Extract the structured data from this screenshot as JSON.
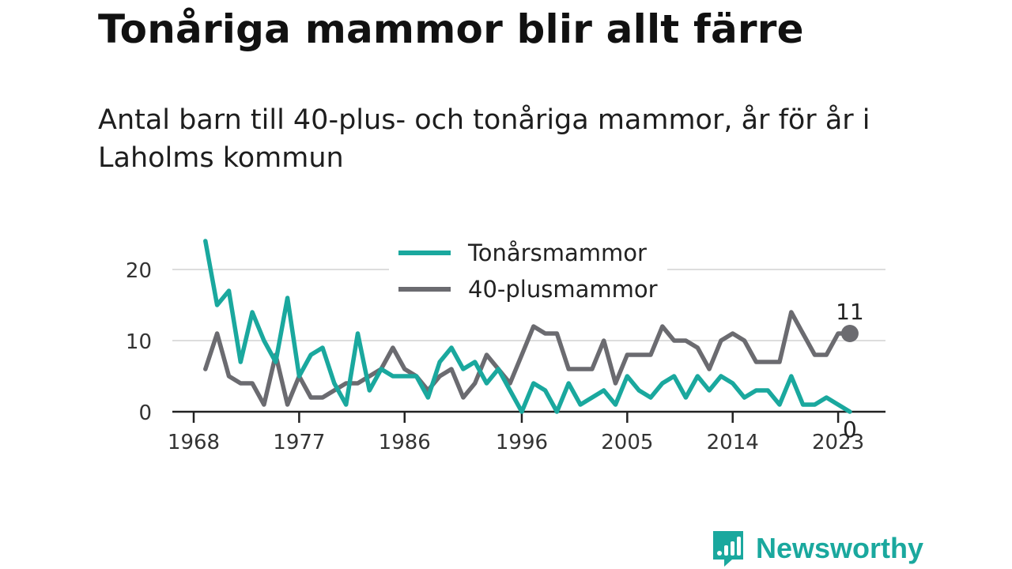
{
  "title": "Tonåriga mammor blir allt färre",
  "subtitle": "Antal barn till 40-plus- och tonåriga mammor, år för år i Laholms kommun",
  "brand": {
    "name": "Newsworthy",
    "color": "#1aa89e"
  },
  "chart_data": {
    "type": "line",
    "x": [
      1969,
      1970,
      1971,
      1972,
      1973,
      1974,
      1975,
      1976,
      1977,
      1978,
      1979,
      1980,
      1981,
      1982,
      1983,
      1984,
      1985,
      1986,
      1987,
      1988,
      1989,
      1990,
      1991,
      1992,
      1993,
      1994,
      1995,
      1996,
      1997,
      1998,
      1999,
      2000,
      2001,
      2002,
      2003,
      2004,
      2005,
      2006,
      2007,
      2008,
      2009,
      2010,
      2011,
      2012,
      2013,
      2014,
      2015,
      2016,
      2017,
      2018,
      2019,
      2020,
      2021,
      2022,
      2023,
      2024
    ],
    "series": [
      {
        "name": "Tonårsmammor",
        "color": "#1aa89e",
        "values": [
          24,
          15,
          17,
          7,
          14,
          10,
          7,
          16,
          5,
          8,
          9,
          4,
          1,
          11,
          3,
          6,
          5,
          5,
          5,
          2,
          7,
          9,
          6,
          7,
          4,
          6,
          3,
          0,
          4,
          3,
          0,
          4,
          1,
          2,
          3,
          1,
          5,
          3,
          2,
          4,
          5,
          2,
          5,
          3,
          5,
          4,
          2,
          3,
          3,
          1,
          5,
          1,
          1,
          2,
          1,
          0
        ]
      },
      {
        "name": "40-plusmammor",
        "color": "#6b6b70",
        "values": [
          6,
          11,
          5,
          4,
          4,
          1,
          8,
          1,
          5,
          2,
          2,
          3,
          4,
          4,
          5,
          6,
          9,
          6,
          5,
          3,
          5,
          6,
          2,
          4,
          8,
          6,
          4,
          8,
          12,
          11,
          11,
          6,
          6,
          6,
          10,
          4,
          8,
          8,
          8,
          12,
          10,
          10,
          9,
          6,
          10,
          11,
          10,
          7,
          7,
          7,
          14,
          11,
          8,
          8,
          11,
          11
        ]
      }
    ],
    "x_ticks": [
      "1968",
      "1977",
      "1986",
      "1996",
      "2005",
      "2014",
      "2023"
    ],
    "y_ticks": [
      "0",
      "10",
      "20"
    ],
    "ylim": [
      0,
      25
    ],
    "end_labels": [
      "0",
      "11"
    ],
    "grid": true,
    "legend_position": "top-center"
  }
}
